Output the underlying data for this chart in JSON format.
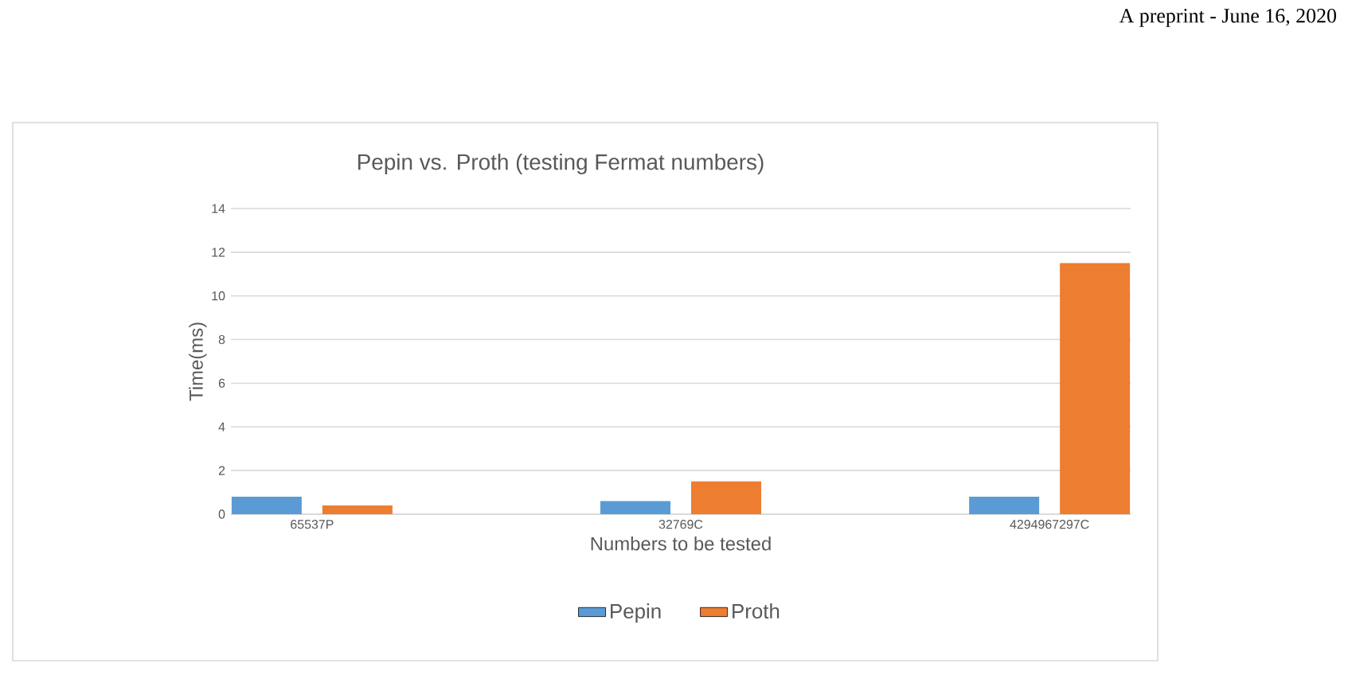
{
  "chart_data": {
    "type": "bar",
    "title": "Pepin vs. Proth  (testing Fermat numbers)",
    "xlabel": "Numbers to be tested",
    "ylabel": "Time(ms)",
    "annotations": [
      "A preprint - June 16, 2020"
    ],
    "categories": [
      "65537P",
      "32769C",
      "4294967297C"
    ],
    "series": [
      {
        "name": "Pepin",
        "color": "#5b9bd5",
        "values": [
          0.8,
          0.6,
          0.8
        ]
      },
      {
        "name": "Proth",
        "color": "#ed7d31",
        "values": [
          0.4,
          1.5,
          11.5
        ]
      }
    ],
    "ylim": [
      0,
      14
    ],
    "yticks": [
      0,
      2,
      4,
      6,
      8,
      10,
      12,
      14
    ],
    "grid": "y",
    "legend": "bottom"
  }
}
